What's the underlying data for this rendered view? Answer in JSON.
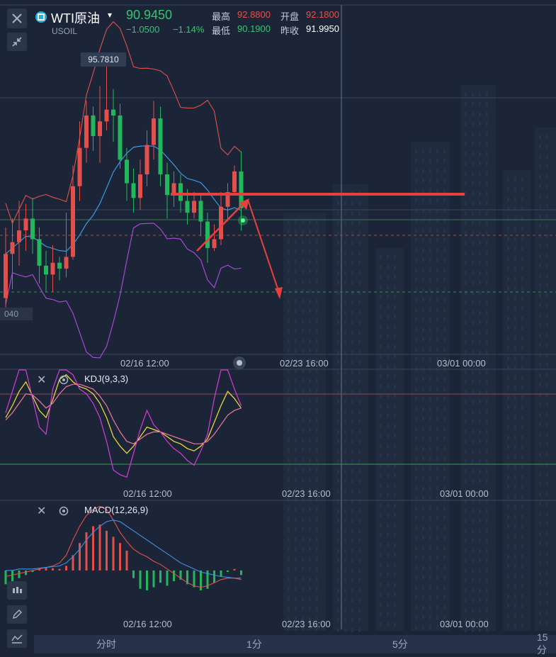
{
  "header": {
    "symbol": "WTI原油",
    "code": "USOIL",
    "price": "90.9450",
    "change": "−1.0500",
    "change_pct": "−1.14%",
    "high_label": "最高",
    "high": "92.8800",
    "open_label": "开盘",
    "open": "92.1800",
    "low_label": "最低",
    "low": "90.1900",
    "prev_close_label": "昨收",
    "prev_close": "91.9950"
  },
  "colors": {
    "up": "#e2504b",
    "down": "#22b75c",
    "boll_upper": "#e2504b",
    "boll_mid": "#3fa2f0",
    "boll_lower": "#b04ae0",
    "k": "#f2e23a",
    "d": "#f07a9a",
    "j": "#d43cd8",
    "dif": "#e2504b",
    "dea": "#3f8fe8"
  },
  "main_chart": {
    "peak_label": "95.7810",
    "left_price_label": "040",
    "time_labels": [
      "02/16 12:00",
      "02/23 16:00",
      "03/01 00:00"
    ]
  },
  "kdj": {
    "title": "KDJ(9,3,3)",
    "time_labels": [
      "02/16 12:00",
      "02/23 16:00",
      "03/01 00:00"
    ]
  },
  "macd": {
    "title": "MACD(12,26,9)",
    "time_labels": [
      "02/16 12:00",
      "02/23 16:00",
      "03/01 00:00"
    ]
  },
  "timeframes": [
    "分时",
    "1分",
    "5分",
    "15分"
  ],
  "chart_data": [
    {
      "type": "candlestick",
      "title": "",
      "overlays": [
        "BOLL upper",
        "BOLL middle",
        "BOLL lower"
      ],
      "annotation": "95.7810",
      "candles": [
        [
          87.9,
          89.4,
          90.3,
          87.3
        ],
        [
          89.4,
          89.8,
          90.6,
          88.2
        ],
        [
          89.8,
          90.2,
          91.2,
          89.0
        ],
        [
          90.2,
          90.6,
          91.1,
          89.5
        ],
        [
          90.6,
          89.9,
          91.3,
          89.4
        ],
        [
          89.9,
          89.0,
          90.3,
          88.4
        ],
        [
          89.0,
          88.7,
          89.5,
          88.1
        ],
        [
          88.7,
          89.1,
          89.7,
          88.1
        ],
        [
          89.1,
          88.9,
          89.3,
          88.5
        ],
        [
          88.9,
          89.3,
          90.8,
          88.6
        ],
        [
          89.3,
          91.7,
          92.4,
          89.2
        ],
        [
          91.7,
          93.0,
          93.9,
          91.2
        ],
        [
          93.0,
          94.1,
          94.6,
          92.5
        ],
        [
          94.1,
          93.4,
          94.4,
          92.9
        ],
        [
          93.4,
          93.9,
          95.1,
          92.5
        ],
        [
          93.9,
          94.3,
          95.78,
          93.6
        ],
        [
          94.3,
          94.1,
          95.0,
          93.2
        ],
        [
          94.1,
          92.6,
          94.5,
          92.3
        ],
        [
          92.6,
          91.8,
          93.0,
          91.2
        ],
        [
          91.8,
          91.3,
          92.3,
          90.8
        ],
        [
          91.3,
          92.1,
          92.6,
          90.9
        ],
        [
          92.1,
          93.1,
          93.6,
          91.7
        ],
        [
          93.1,
          94.0,
          94.6,
          92.6
        ],
        [
          94.0,
          92.1,
          94.4,
          91.7
        ],
        [
          92.1,
          91.4,
          92.5,
          90.6
        ],
        [
          91.4,
          91.8,
          92.2,
          91.0
        ],
        [
          91.8,
          91.2,
          92.1,
          90.8
        ],
        [
          91.2,
          90.8,
          91.6,
          90.4
        ],
        [
          90.8,
          91.2,
          91.5,
          90.6
        ],
        [
          91.2,
          90.5,
          91.4,
          90.0
        ],
        [
          90.5,
          89.6,
          90.8,
          89.1
        ],
        [
          89.6,
          89.9,
          90.4,
          89.5
        ],
        [
          89.9,
          91.0,
          91.5,
          89.7
        ],
        [
          91.0,
          91.5,
          91.8,
          90.5
        ],
        [
          91.5,
          92.2,
          92.4,
          91.4
        ],
        [
          92.2,
          90.95,
          92.88,
          90.19
        ]
      ],
      "ylim": [
        87.0,
        96.0
      ]
    },
    {
      "type": "line",
      "title": "KDJ(9,3,3)",
      "series": [
        {
          "name": "K",
          "values": [
            60,
            70,
            82,
            90,
            78,
            66,
            60,
            75,
            92,
            96,
            90,
            86,
            84,
            80,
            72,
            60,
            44,
            36,
            30,
            36,
            44,
            52,
            50,
            48,
            44,
            40,
            38,
            34,
            32,
            36,
            42,
            56,
            70,
            82,
            76,
            68
          ]
        },
        {
          "name": "D",
          "values": [
            58,
            64,
            72,
            80,
            79,
            74,
            68,
            72,
            80,
            86,
            88,
            88,
            86,
            84,
            78,
            70,
            58,
            48,
            40,
            38,
            42,
            46,
            48,
            48,
            46,
            44,
            42,
            40,
            38,
            38,
            40,
            46,
            54,
            62,
            66,
            68
          ]
        },
        {
          "name": "J",
          "values": [
            64,
            82,
            100,
            100,
            76,
            52,
            46,
            84,
            100,
            100,
            96,
            84,
            80,
            72,
            60,
            40,
            16,
            12,
            10,
            30,
            50,
            66,
            54,
            48,
            40,
            34,
            30,
            24,
            20,
            32,
            46,
            76,
            100,
            100,
            84,
            70
          ]
        }
      ],
      "ylim": [
        0,
        100
      ]
    },
    {
      "type": "bar",
      "title": "MACD(12,26,9)",
      "series": [
        {
          "name": "MACD",
          "values": [
            -0.18,
            -0.14,
            -0.1,
            -0.06,
            -0.02,
            0.02,
            0.04,
            0.03,
            0.02,
            0.06,
            0.2,
            0.36,
            0.5,
            0.58,
            0.6,
            0.52,
            0.44,
            0.36,
            0.26,
            -0.1,
            -0.24,
            -0.26,
            -0.22,
            -0.16,
            -0.2,
            -0.14,
            -0.12,
            -0.18,
            -0.22,
            -0.26,
            -0.24,
            -0.16,
            -0.08,
            -0.02,
            0.02,
            -0.06
          ]
        },
        {
          "name": "DIF",
          "values": [
            -0.08,
            -0.06,
            -0.04,
            -0.02,
            0.0,
            0.02,
            0.04,
            0.06,
            0.1,
            0.2,
            0.4,
            0.58,
            0.72,
            0.8,
            0.84,
            0.8,
            0.66,
            0.5,
            0.38,
            0.28,
            0.22,
            0.18,
            0.12,
            0.08,
            0.02,
            -0.04,
            -0.1,
            -0.16,
            -0.2,
            -0.22,
            -0.2,
            -0.16,
            -0.12,
            -0.1,
            -0.1,
            -0.12
          ]
        },
        {
          "name": "DEA",
          "values": [
            0.0,
            0.0,
            0.02,
            0.02,
            0.02,
            0.03,
            0.04,
            0.05,
            0.06,
            0.1,
            0.18,
            0.28,
            0.4,
            0.5,
            0.58,
            0.64,
            0.66,
            0.64,
            0.58,
            0.52,
            0.46,
            0.4,
            0.34,
            0.28,
            0.22,
            0.16,
            0.1,
            0.06,
            0.02,
            -0.02,
            -0.04,
            -0.06,
            -0.08,
            -0.09,
            -0.1,
            -0.1
          ]
        }
      ],
      "ylim": [
        -0.4,
        0.9
      ]
    }
  ]
}
